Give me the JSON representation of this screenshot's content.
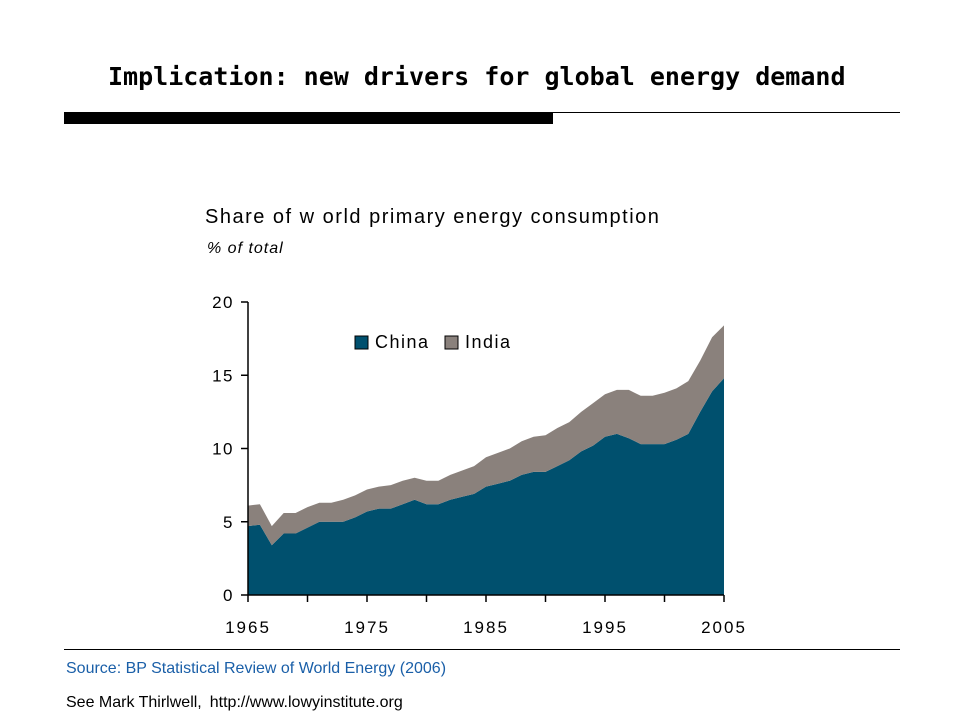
{
  "slide": {
    "title": "Implication: new drivers for global energy demand"
  },
  "footer": {
    "source": "Source: BP Statistical Review of World Energy (2006)",
    "see_text": "See Mark Thirlwell,",
    "url": "http://www.lowyinstitute.org"
  },
  "chart_data": {
    "type": "area",
    "stacked": true,
    "title": "Share of w orld primary energy consumption",
    "subtitle": "% of total",
    "xlim": [
      1965,
      2005
    ],
    "ylim": [
      0,
      20
    ],
    "x_ticks": [
      "1965",
      "1975",
      "1985",
      "1995",
      "2005"
    ],
    "y_ticks": [
      "0",
      "5",
      "10",
      "15",
      "20"
    ],
    "legend_position": "top-center",
    "x": [
      1965,
      1966,
      1967,
      1968,
      1969,
      1970,
      1971,
      1972,
      1973,
      1974,
      1975,
      1976,
      1977,
      1978,
      1979,
      1980,
      1981,
      1982,
      1983,
      1984,
      1985,
      1986,
      1987,
      1988,
      1989,
      1990,
      1991,
      1992,
      1993,
      1994,
      1995,
      1996,
      1997,
      1998,
      1999,
      2000,
      2001,
      2002,
      2003,
      2004,
      2005
    ],
    "series": [
      {
        "name": "China",
        "color": "#00506e",
        "values": [
          4.7,
          4.8,
          3.4,
          4.2,
          4.2,
          4.6,
          5.0,
          5.0,
          5.0,
          5.3,
          5.7,
          5.9,
          5.9,
          6.2,
          6.5,
          6.2,
          6.2,
          6.5,
          6.7,
          6.9,
          7.4,
          7.6,
          7.8,
          8.2,
          8.4,
          8.4,
          8.8,
          9.2,
          9.8,
          10.2,
          10.8,
          11.0,
          10.7,
          10.3,
          10.3,
          10.3,
          10.6,
          11.0,
          12.5,
          13.9,
          14.8
        ]
      },
      {
        "name": "India",
        "color": "#8a817c",
        "values": [
          1.4,
          1.4,
          1.3,
          1.4,
          1.4,
          1.4,
          1.3,
          1.3,
          1.5,
          1.5,
          1.5,
          1.5,
          1.6,
          1.6,
          1.5,
          1.6,
          1.6,
          1.7,
          1.8,
          1.9,
          2.0,
          2.1,
          2.2,
          2.3,
          2.4,
          2.5,
          2.6,
          2.6,
          2.7,
          2.9,
          2.9,
          3.0,
          3.3,
          3.3,
          3.3,
          3.5,
          3.5,
          3.6,
          3.5,
          3.7,
          3.6
        ]
      }
    ]
  }
}
